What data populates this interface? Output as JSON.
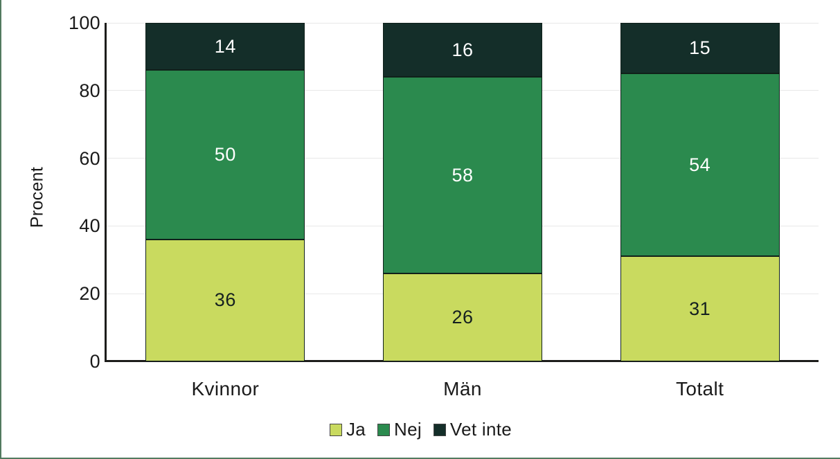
{
  "frame": {
    "border_color": "#527a5f"
  },
  "chart_data": {
    "type": "bar",
    "stacked": true,
    "categories": [
      "Kvinnor",
      "Män",
      "Totalt"
    ],
    "series": [
      {
        "name": "Ja",
        "values": [
          36,
          26,
          31
        ],
        "color": "#c9da5f",
        "label_color": "#152020"
      },
      {
        "name": "Nej",
        "values": [
          50,
          58,
          54
        ],
        "color": "#2b8a4e",
        "label_color": "#ffffff"
      },
      {
        "name": "Vet inte",
        "values": [
          14,
          16,
          15
        ],
        "color": "#142e29",
        "label_color": "#ffffff"
      }
    ],
    "title": "",
    "xlabel": "",
    "ylabel": "Procent",
    "ylim": [
      0,
      100
    ],
    "yticks": [
      0,
      20,
      40,
      60,
      80,
      100
    ],
    "grid": true,
    "legend_position": "bottom"
  },
  "styles": {
    "grid_color": "#e8e8e8",
    "axis_color": "#1d1d1b",
    "text_color": "#1a1a1a",
    "segment_border": "#10201a"
  }
}
